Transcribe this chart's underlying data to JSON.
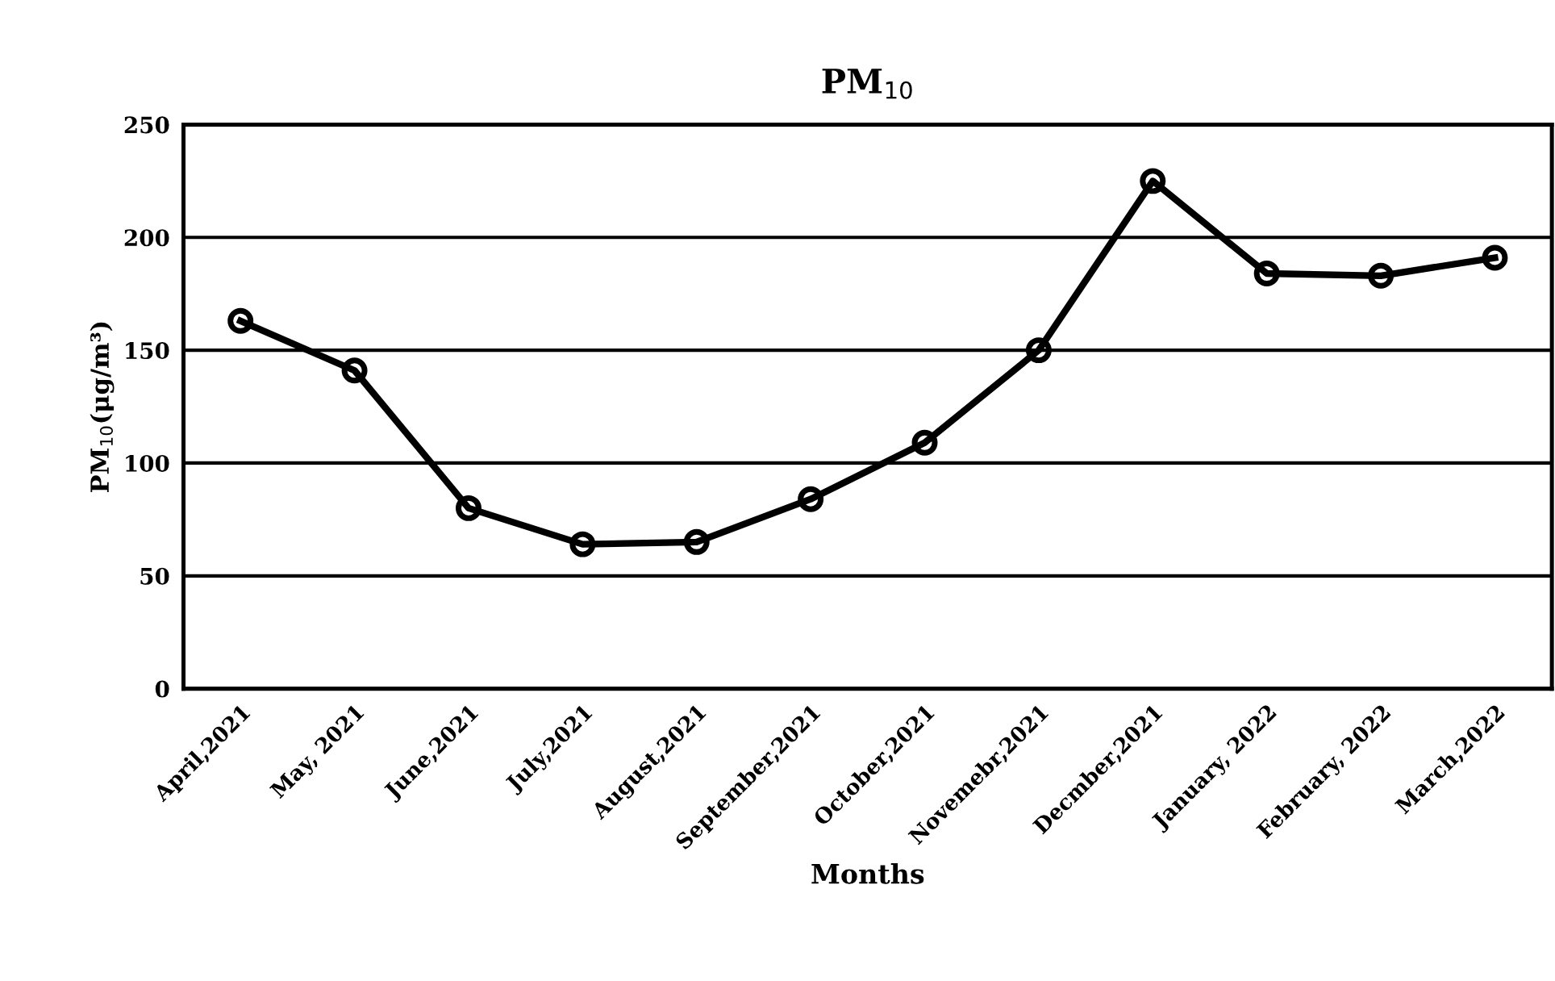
{
  "chart_data": {
    "type": "line",
    "title": "PM$_{10}$",
    "xlabel": "Months",
    "ylabel": "PM$_{10}$(μg/m³)",
    "categories": [
      "April,2021",
      "May, 2021",
      "June,2021",
      "July,2021",
      "August,2021",
      "September,2021",
      "October,2021",
      "Novemebr,2021",
      "Decmber,2021",
      "January, 2022",
      "February, 2022",
      "March,2022"
    ],
    "series": [
      {
        "color": "#000000",
        "values": [
          163,
          141,
          80,
          64,
          65,
          84,
          109,
          150,
          225,
          184,
          183,
          191
        ]
      }
    ],
    "ylim": [
      0,
      250
    ],
    "yticks": [
      0,
      50,
      100,
      150,
      200,
      250
    ],
    "grid": "y",
    "marker": "circle",
    "line_style": "solid",
    "legend": false
  }
}
